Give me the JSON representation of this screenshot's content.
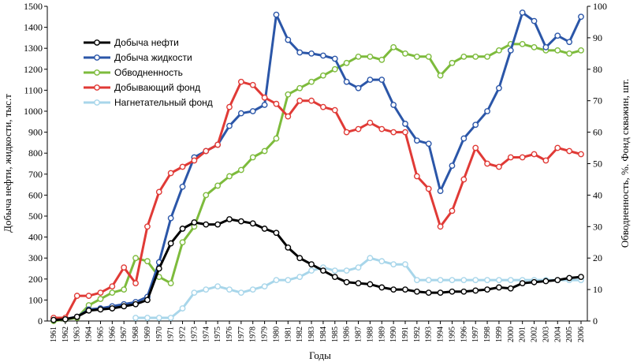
{
  "chart_data": {
    "type": "line",
    "xlabel": "Годы",
    "ylabel_left": "Добыча нефти, жидкости, тыс.т",
    "ylabel_right": "Обводненность, %. Фонд скважин, шт.",
    "ylim_left": [
      0,
      1500
    ],
    "ylim_right": [
      0,
      100
    ],
    "yticks_left": [
      "0",
      "100",
      "200",
      "300",
      "400",
      "500",
      "600",
      "700",
      "800",
      "900",
      "1000",
      "1100",
      "1200",
      "1300",
      "1400",
      "1500"
    ],
    "yticks_right": [
      "0",
      "10",
      "20",
      "30",
      "40",
      "50",
      "60",
      "70",
      "80",
      "90",
      "100"
    ],
    "grid": false,
    "legend_position": "top-left",
    "categories": [
      "1961",
      "1962",
      "1963",
      "1964",
      "1965",
      "1966",
      "1967",
      "1968",
      "1969",
      "1970",
      "1971",
      "1972",
      "1973",
      "1974",
      "1975",
      "1976",
      "1977",
      "1978",
      "1979",
      "1980",
      "1981",
      "1982",
      "1983",
      "1984",
      "1985",
      "1986",
      "1987",
      "1988",
      "1989",
      "1990",
      "1991",
      "1992",
      "1993",
      "1994",
      "1995",
      "1996",
      "1997",
      "1998",
      "1999",
      "2000",
      "2001",
      "2002",
      "2003",
      "2004",
      "2005",
      "2006"
    ],
    "series": [
      {
        "name": "Добыча нефти",
        "axis": "left",
        "color": "#000000",
        "values": [
          5,
          8,
          20,
          50,
          55,
          60,
          70,
          80,
          100,
          250,
          370,
          440,
          470,
          460,
          460,
          485,
          475,
          465,
          440,
          420,
          350,
          300,
          270,
          240,
          210,
          185,
          180,
          175,
          160,
          150,
          150,
          140,
          135,
          135,
          140,
          140,
          145,
          150,
          160,
          155,
          180,
          185,
          190,
          195,
          205,
          210
        ]
      },
      {
        "name": "Добыча жидкости",
        "axis": "left",
        "color": "#2b56a8",
        "values": [
          5,
          10,
          20,
          55,
          60,
          70,
          80,
          90,
          115,
          280,
          490,
          640,
          780,
          810,
          840,
          930,
          990,
          1000,
          1030,
          1460,
          1340,
          1280,
          1275,
          1265,
          1250,
          1140,
          1110,
          1150,
          1150,
          1030,
          940,
          860,
          845,
          620,
          740,
          870,
          935,
          1000,
          1110,
          1290,
          1470,
          1430,
          1305,
          1360,
          1330,
          1450
        ]
      },
      {
        "name": "Обводненность",
        "axis": "right",
        "color": "#7dbb3c",
        "values": [
          0,
          0.5,
          1,
          5,
          7,
          9,
          10,
          20,
          19,
          14,
          12,
          25,
          30,
          40,
          43,
          46,
          48,
          52,
          54,
          58,
          72,
          74,
          76,
          78,
          80,
          82,
          84,
          84,
          83,
          87,
          85,
          84,
          84,
          78,
          82,
          84,
          84,
          84,
          86,
          88,
          88,
          87,
          86,
          86,
          85,
          86
        ]
      },
      {
        "name": "Добывающий фонд",
        "axis": "right",
        "color": "#e03a36",
        "values": [
          1,
          1,
          8,
          8,
          9,
          11,
          17,
          12,
          30,
          41,
          47,
          49,
          51,
          54,
          56,
          68,
          76,
          75,
          71,
          69,
          65,
          70,
          70,
          68,
          67,
          60,
          61,
          63,
          61,
          60,
          60,
          46,
          42,
          30,
          35,
          45,
          55,
          50,
          49,
          52,
          52,
          53,
          51,
          55,
          54,
          53
        ]
      },
      {
        "name": "Нагнетательный фонд",
        "axis": "right",
        "color": "#a8d6ea",
        "values": [
          null,
          null,
          null,
          null,
          null,
          null,
          null,
          1,
          1,
          1,
          1,
          4,
          9,
          10,
          11,
          10,
          9,
          10,
          11,
          13,
          13,
          14,
          16,
          17,
          16,
          16,
          17,
          20,
          19,
          18,
          18,
          13,
          13,
          13,
          13,
          13,
          13,
          13,
          13,
          13,
          13,
          13,
          13,
          13,
          13,
          13
        ]
      }
    ]
  }
}
